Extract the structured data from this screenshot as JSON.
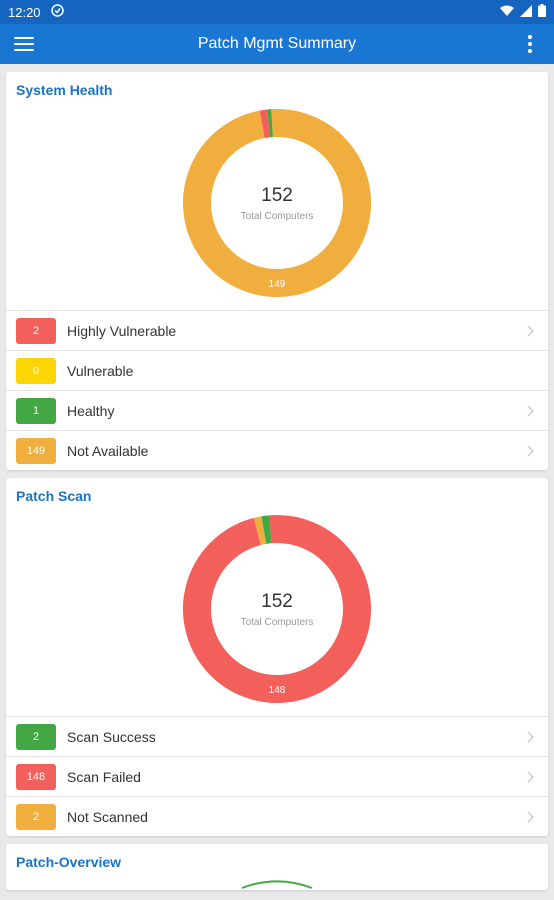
{
  "statusbar": {
    "time": "12:20"
  },
  "toolbar": {
    "title": "Patch Mgmt Summary"
  },
  "colors": {
    "red": "#f35f5a",
    "yellow": "#fcd602",
    "green": "#43a843",
    "orange": "#f0ae3f"
  },
  "cards": [
    {
      "title": "System Health",
      "total": "152",
      "total_label": "Total Computers",
      "segments": [
        {
          "value": 149,
          "color": "#f0ae3f"
        },
        {
          "value": 2,
          "color": "#f35f5a"
        },
        {
          "value": 1,
          "color": "#43a843"
        }
      ],
      "segment_label": "149",
      "items": [
        {
          "count": "2",
          "label": "Highly Vulnerable",
          "color": "#f35f5a",
          "chevron": true
        },
        {
          "count": "0",
          "label": "Vulnerable",
          "color": "#fcd602",
          "chevron": false
        },
        {
          "count": "1",
          "label": "Healthy",
          "color": "#43a843",
          "chevron": true
        },
        {
          "count": "149",
          "label": "Not Available",
          "color": "#f0ae3f",
          "chevron": true
        }
      ]
    },
    {
      "title": "Patch Scan",
      "total": "152",
      "total_label": "Total Computers",
      "segments": [
        {
          "value": 148,
          "color": "#f35f5a"
        },
        {
          "value": 2,
          "color": "#f0ae3f"
        },
        {
          "value": 2,
          "color": "#43a843"
        }
      ],
      "segment_label": "148",
      "items": [
        {
          "count": "2",
          "label": "Scan Success",
          "color": "#43a843",
          "chevron": true
        },
        {
          "count": "148",
          "label": "Scan Failed",
          "color": "#f35f5a",
          "chevron": true
        },
        {
          "count": "2",
          "label": "Not Scanned",
          "color": "#f0ae3f",
          "chevron": true
        }
      ]
    },
    {
      "title": "Patch-Overview"
    }
  ]
}
